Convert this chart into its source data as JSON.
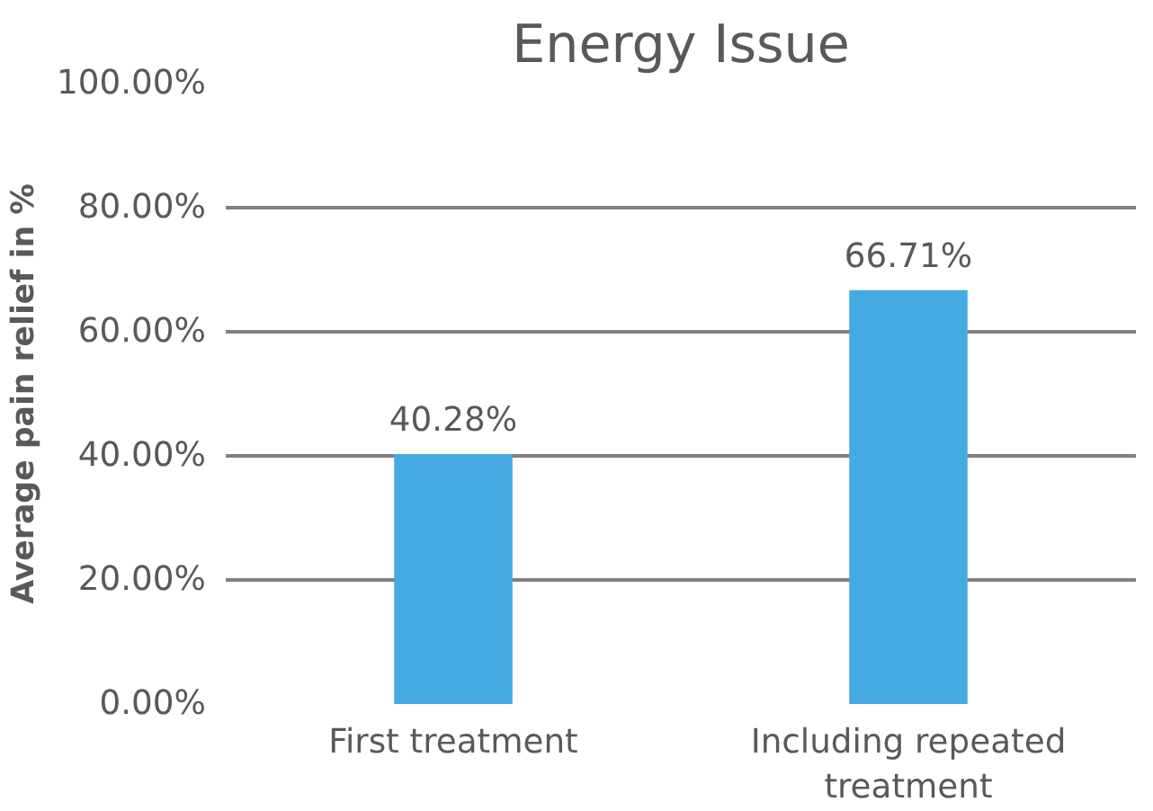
{
  "chart_data": {
    "type": "bar",
    "title": "Energy Issue",
    "ylabel": "Average pain relief in %",
    "categories": [
      "First treatment",
      "Including repeated treatment"
    ],
    "values": [
      40.28,
      66.71
    ],
    "color": "#45aae2",
    "value_labels": [
      "40.28%",
      "66.71%"
    ],
    "ylim": [
      0,
      100
    ],
    "yticks": [
      {
        "value": 0,
        "label": "0.00%"
      },
      {
        "value": 20,
        "label": "20.00%"
      },
      {
        "value": 40,
        "label": "40.00%"
      },
      {
        "value": 60,
        "label": "60.00%"
      },
      {
        "value": 80,
        "label": "80.00%"
      },
      {
        "value": 100,
        "label": "100.00%"
      }
    ],
    "grid": "y"
  }
}
